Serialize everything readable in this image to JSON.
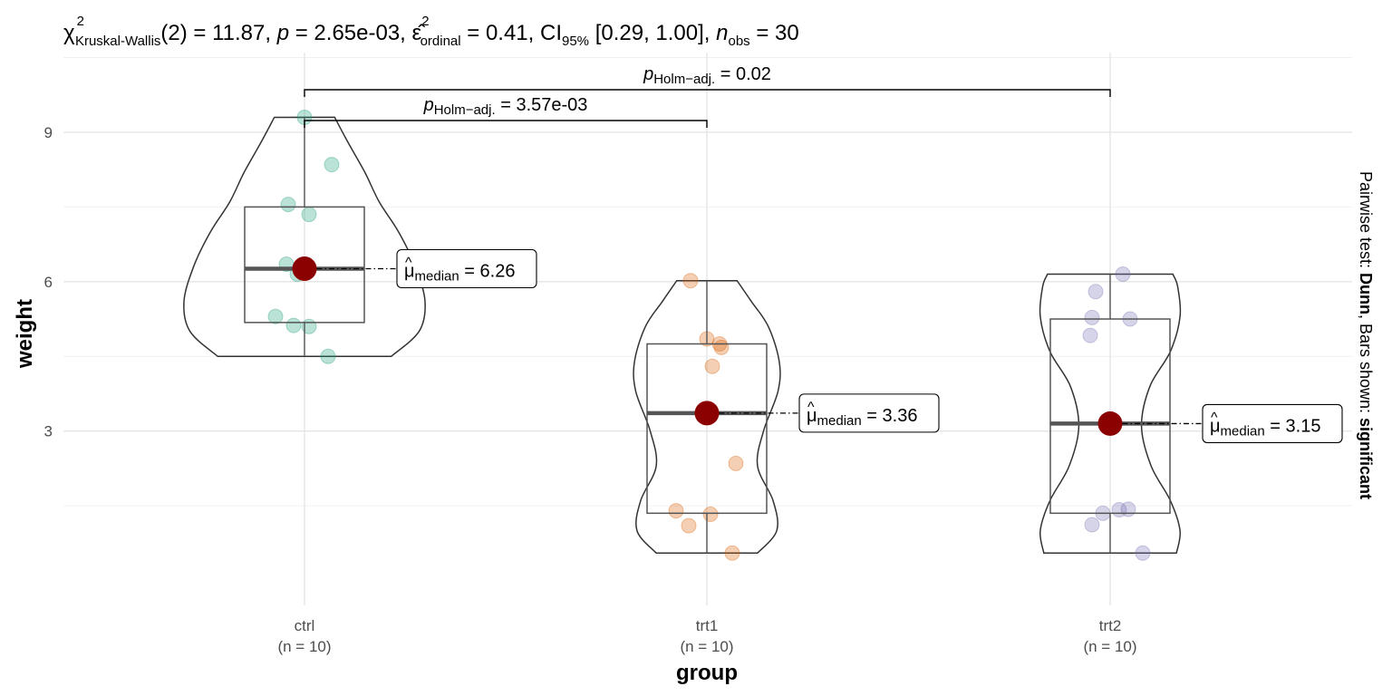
{
  "chart_data": {
    "type": "violin-box",
    "subtitle": {
      "chi_label": "Kruskal-Wallis",
      "chi_df": "(2)",
      "chi_value": " = 11.87, ",
      "p_label": "p",
      "p_value": " = 2.65e-03, ",
      "eps_label": "ordinal",
      "eps_value": " = 0.41, CI",
      "ci_label": "95%",
      "ci_value": " [0.29, 1.00], ",
      "n_label": "n",
      "n_sub": "obs",
      "n_value": " = 30"
    },
    "xlabel": "group",
    "ylabel": "weight",
    "ylim": [
      -0.5,
      10.6
    ],
    "yticks": [
      3,
      6,
      9
    ],
    "caption_prefix": "Pairwise test: ",
    "caption_bold1": "Dunn",
    "caption_middle": ", Bars shown: ",
    "caption_bold2": "significant",
    "groups": [
      {
        "name": "ctrl",
        "n_label": "(n = 10)",
        "color": "#1b9e77",
        "points": [
          9.3,
          8.35,
          7.55,
          7.35,
          6.35,
          6.15,
          5.3,
          5.12,
          5.1,
          4.5
        ],
        "box": {
          "q1": 5.18,
          "median": 6.26,
          "q3": 7.5,
          "min": 4.5,
          "max": 9.3
        },
        "violin_width": [
          [
            4.5,
            0.72
          ],
          [
            5.0,
            0.95
          ],
          [
            5.6,
            1.0
          ],
          [
            6.3,
            0.92
          ],
          [
            7.0,
            0.78
          ],
          [
            7.6,
            0.62
          ],
          [
            8.2,
            0.5
          ],
          [
            8.8,
            0.36
          ],
          [
            9.3,
            0.25
          ]
        ],
        "median_label_prefix": "μ",
        "median_label_sub": "median",
        "median_label_value": " = 6.26",
        "median_value": 6.26
      },
      {
        "name": "trt1",
        "n_label": "(n = 10)",
        "color": "#d95f02",
        "points": [
          6.02,
          4.85,
          4.75,
          4.68,
          4.3,
          2.35,
          1.4,
          1.33,
          1.1,
          0.55
        ],
        "box": {
          "q1": 1.35,
          "median": 3.36,
          "q3": 4.75,
          "min": 0.55,
          "max": 6.02
        },
        "violin_width": [
          [
            0.55,
            0.42
          ],
          [
            1.0,
            0.58
          ],
          [
            1.6,
            0.55
          ],
          [
            2.3,
            0.42
          ],
          [
            3.0,
            0.47
          ],
          [
            3.8,
            0.59
          ],
          [
            4.4,
            0.6
          ],
          [
            5.1,
            0.51
          ],
          [
            5.6,
            0.37
          ],
          [
            6.02,
            0.25
          ]
        ],
        "median_label_prefix": "μ",
        "median_label_sub": "median",
        "median_label_value": " = 3.36",
        "median_value": 3.36
      },
      {
        "name": "trt2",
        "n_label": "(n = 10)",
        "color": "#7570b3",
        "points": [
          6.15,
          5.8,
          5.28,
          5.25,
          4.92,
          1.43,
          1.42,
          1.35,
          1.12,
          0.55
        ],
        "box": {
          "q1": 1.35,
          "median": 3.15,
          "q3": 5.25,
          "min": 0.55,
          "max": 6.15
        },
        "violin_width": [
          [
            0.55,
            0.55
          ],
          [
            1.0,
            0.58
          ],
          [
            1.6,
            0.5
          ],
          [
            2.3,
            0.34
          ],
          [
            3.1,
            0.26
          ],
          [
            3.9,
            0.33
          ],
          [
            4.6,
            0.5
          ],
          [
            5.3,
            0.58
          ],
          [
            5.9,
            0.56
          ],
          [
            6.15,
            0.52
          ]
        ],
        "median_label_prefix": "μ",
        "median_label_sub": "median",
        "median_label_value": " = 3.15",
        "median_value": 3.15
      }
    ],
    "comparisons": [
      {
        "from": 0,
        "to": 1,
        "y": 10.0,
        "label_p": "p",
        "label_sub": "Holm−adj.",
        "label_value": " = 3.57e-03"
      },
      {
        "from": 0,
        "to": 2,
        "y": 10.65,
        "label_p": "p",
        "label_sub": "Holm−adj.",
        "label_value": " = 0.02"
      }
    ],
    "median_point_color": "#8b0000"
  }
}
